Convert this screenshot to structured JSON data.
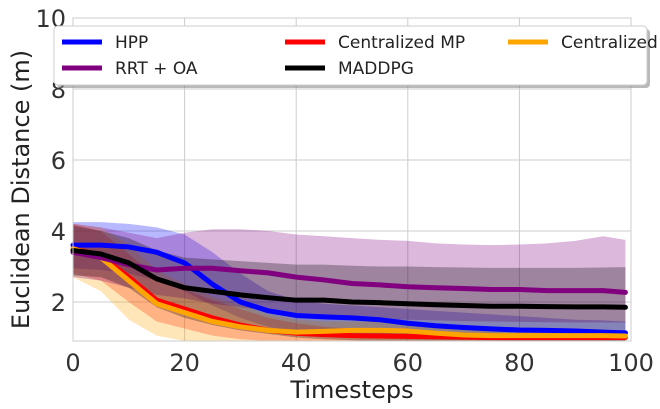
{
  "chart_data": {
    "type": "line",
    "title": "",
    "xlabel": "Timesteps",
    "ylabel": "Euclidean Distance (m)",
    "xlim": [
      0,
      100
    ],
    "ylim": [
      0.9,
      10
    ],
    "x_ticks": [
      0,
      20,
      40,
      60,
      80,
      100
    ],
    "x_tick_labels": [
      "0",
      "20",
      "40",
      "60",
      "80",
      "100"
    ],
    "y_ticks": [
      2,
      4,
      6,
      8,
      10
    ],
    "y_tick_labels": [
      "2",
      "4",
      "6",
      "8",
      "10"
    ],
    "grid": true,
    "legend_position": "top",
    "x": [
      0,
      5,
      10,
      15,
      20,
      25,
      30,
      35,
      40,
      45,
      50,
      55,
      60,
      65,
      70,
      75,
      80,
      85,
      90,
      95,
      99
    ],
    "series": [
      {
        "name": "HPP",
        "color": "#0000ff",
        "values": [
          3.6,
          3.6,
          3.55,
          3.4,
          3.1,
          2.5,
          2.0,
          1.75,
          1.62,
          1.58,
          1.55,
          1.5,
          1.4,
          1.33,
          1.28,
          1.24,
          1.21,
          1.2,
          1.18,
          1.15,
          1.13
        ],
        "lower": [
          2.95,
          2.9,
          2.8,
          2.6,
          2.3,
          1.9,
          1.55,
          1.3,
          1.15,
          1.05,
          1.0,
          0.97,
          0.95,
          0.94,
          0.93,
          0.92,
          0.91,
          0.9,
          0.9,
          0.9,
          0.9
        ],
        "upper": [
          4.25,
          4.25,
          4.2,
          4.1,
          3.9,
          3.4,
          2.8,
          2.3,
          2.05,
          1.95,
          1.9,
          1.85,
          1.8,
          1.75,
          1.7,
          1.65,
          1.6,
          1.55,
          1.5,
          1.48,
          1.45
        ]
      },
      {
        "name": "Centralized MP",
        "color": "#ff0000",
        "values": [
          3.5,
          3.3,
          2.7,
          2.05,
          1.8,
          1.55,
          1.35,
          1.2,
          1.12,
          1.08,
          1.05,
          1.04,
          1.03,
          1.02,
          1.01,
          1.0,
          1.0,
          1.0,
          1.0,
          1.0,
          1.0
        ],
        "lower": [
          2.8,
          2.6,
          2.0,
          1.45,
          1.25,
          1.05,
          0.95,
          0.9,
          0.9,
          0.9,
          0.9,
          0.9,
          0.9,
          0.9,
          0.9,
          0.9,
          0.9,
          0.9,
          0.9,
          0.9,
          0.9
        ],
        "upper": [
          4.2,
          4.0,
          3.35,
          2.7,
          2.35,
          2.05,
          1.8,
          1.55,
          1.4,
          1.3,
          1.25,
          1.2,
          1.18,
          1.15,
          1.14,
          1.13,
          1.12,
          1.12,
          1.11,
          1.11,
          1.1
        ]
      },
      {
        "name": "Centralized OA",
        "color": "#ffa500",
        "values": [
          3.5,
          3.25,
          2.6,
          1.95,
          1.7,
          1.45,
          1.3,
          1.2,
          1.15,
          1.17,
          1.2,
          1.2,
          1.18,
          1.12,
          1.07,
          1.05,
          1.05,
          1.05,
          1.05,
          1.05,
          1.04
        ],
        "lower": [
          2.7,
          2.3,
          1.5,
          1.05,
          0.9,
          0.9,
          0.9,
          0.9,
          0.9,
          0.9,
          0.9,
          0.9,
          0.9,
          0.9,
          0.9,
          0.9,
          0.9,
          0.9,
          0.9,
          0.9,
          0.9
        ],
        "upper": [
          4.2,
          4.1,
          3.6,
          2.9,
          2.5,
          2.15,
          1.9,
          1.65,
          1.5,
          1.45,
          1.45,
          1.45,
          1.42,
          1.35,
          1.28,
          1.24,
          1.22,
          1.2,
          1.2,
          1.19,
          1.18
        ]
      },
      {
        "name": "RRT + OA",
        "color": "#800080",
        "values": [
          3.4,
          3.25,
          3.05,
          2.9,
          2.95,
          2.95,
          2.88,
          2.82,
          2.7,
          2.62,
          2.52,
          2.48,
          2.43,
          2.4,
          2.38,
          2.35,
          2.35,
          2.32,
          2.32,
          2.32,
          2.27
        ],
        "lower": [
          2.7,
          2.6,
          2.4,
          2.2,
          2.1,
          1.95,
          1.85,
          1.75,
          1.65,
          1.6,
          1.55,
          1.52,
          1.5,
          1.48,
          1.46,
          1.45,
          1.44,
          1.43,
          1.42,
          1.42,
          1.42
        ],
        "upper": [
          4.2,
          4.1,
          3.95,
          3.8,
          3.95,
          4.05,
          4.05,
          4.0,
          3.9,
          3.85,
          3.8,
          3.75,
          3.72,
          3.65,
          3.62,
          3.6,
          3.62,
          3.65,
          3.72,
          3.85,
          3.75
        ]
      },
      {
        "name": "MADDPG",
        "color": "#000000",
        "values": [
          3.45,
          3.35,
          3.1,
          2.65,
          2.4,
          2.3,
          2.2,
          2.12,
          2.05,
          2.05,
          2.0,
          1.98,
          1.95,
          1.92,
          1.9,
          1.88,
          1.88,
          1.87,
          1.86,
          1.86,
          1.85
        ],
        "lower": [
          2.75,
          2.7,
          2.4,
          1.85,
          1.55,
          1.35,
          1.2,
          1.1,
          1.0,
          0.95,
          0.92,
          0.9,
          0.9,
          0.9,
          0.9,
          0.9,
          0.9,
          0.9,
          0.9,
          0.9,
          0.9
        ],
        "upper": [
          4.15,
          4.0,
          3.8,
          3.45,
          3.25,
          3.2,
          3.15,
          3.1,
          3.05,
          3.05,
          3.02,
          3.0,
          3.0,
          2.98,
          2.97,
          2.96,
          2.96,
          2.96,
          2.96,
          2.97,
          2.98
        ]
      }
    ]
  }
}
